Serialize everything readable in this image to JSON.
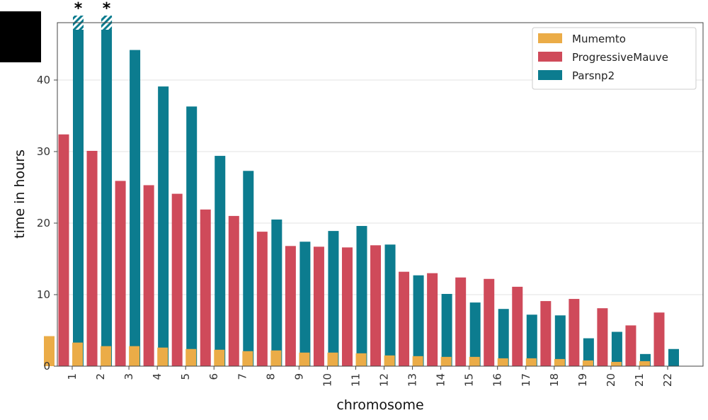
{
  "chart_data": {
    "type": "bar",
    "xlabel": "chromosome",
    "ylabel": "time in hours",
    "ylim": [
      0,
      47.5
    ],
    "yticks": [
      0,
      10,
      20,
      30,
      40
    ],
    "grid": true,
    "legend_position": "top-right",
    "categories": [
      "1",
      "2",
      "3",
      "4",
      "5",
      "6",
      "7",
      "8",
      "9",
      "10",
      "11",
      "12",
      "13",
      "14",
      "15",
      "16",
      "17",
      "18",
      "19",
      "20",
      "21",
      "22"
    ],
    "series": [
      {
        "name": "Mumemto",
        "color": "#EBAC47",
        "values": [
          4.2,
          3.3,
          2.8,
          2.8,
          2.6,
          2.4,
          2.3,
          2.1,
          2.2,
          1.9,
          1.9,
          1.8,
          1.5,
          1.4,
          1.3,
          1.3,
          1.1,
          1.1,
          1.0,
          0.8,
          0.6,
          0.7
        ]
      },
      {
        "name": "ProgressiveMauve",
        "color": "#CF4A5A",
        "values": [
          32.4,
          30.1,
          25.9,
          25.3,
          24.1,
          21.9,
          21.0,
          18.8,
          16.8,
          16.7,
          16.6,
          16.9,
          13.2,
          13.0,
          12.4,
          12.2,
          11.1,
          9.1,
          9.4,
          8.1,
          5.7,
          7.5
        ]
      },
      {
        "name": "Parsnp2",
        "color": "#0C7C8F",
        "values": [
          47.5,
          47.5,
          44.2,
          39.1,
          36.3,
          29.4,
          27.3,
          20.5,
          17.4,
          18.9,
          19.6,
          17.0,
          12.7,
          10.1,
          8.9,
          8.0,
          7.2,
          7.1,
          3.9,
          4.8,
          1.7,
          2.4
        ]
      }
    ],
    "annotations": [
      {
        "category": "1",
        "series": "Parsnp2",
        "text": "*",
        "style": "hatched-cap"
      },
      {
        "category": "2",
        "series": "Parsnp2",
        "text": "*",
        "style": "hatched-cap"
      }
    ]
  }
}
